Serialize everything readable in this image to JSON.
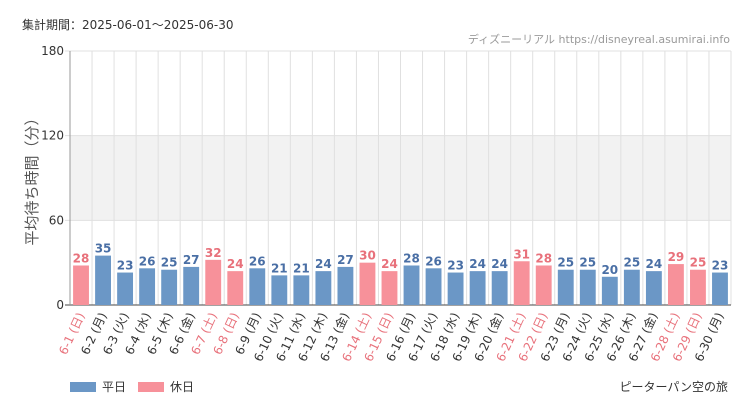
{
  "header": {
    "period": "集計期間：2025-06-01～2025-06-30"
  },
  "source": "ディズニーリアル https://disneyreal.asumirai.info",
  "attraction": "ピーターパン空の旅",
  "colors": {
    "weekday": "#6b97c6",
    "holiday": "#f7919a",
    "weekdayText": "#4a6fa5",
    "holidayText": "#e8717b",
    "band": "#f2f2f2",
    "grid": "#e0e0e0"
  },
  "chart_data": {
    "type": "bar",
    "ylabel": "平均待ち時間（分）",
    "ylim": [
      0,
      180
    ],
    "yticks": [
      0,
      60,
      120,
      180
    ],
    "grid": true,
    "legend": "bottom-left",
    "categories": [
      "6-1 (日)",
      "6-2 (月)",
      "6-3 (火)",
      "6-4 (水)",
      "6-5 (木)",
      "6-6 (金)",
      "6-7 (土)",
      "6-8 (日)",
      "6-9 (月)",
      "6-10 (火)",
      "6-11 (水)",
      "6-12 (木)",
      "6-13 (金)",
      "6-14 (土)",
      "6-15 (日)",
      "6-16 (月)",
      "6-17 (火)",
      "6-18 (水)",
      "6-19 (木)",
      "6-20 (金)",
      "6-21 (土)",
      "6-22 (日)",
      "6-23 (月)",
      "6-24 (火)",
      "6-25 (水)",
      "6-26 (木)",
      "6-27 (金)",
      "6-28 (土)",
      "6-29 (日)",
      "6-30 (月)"
    ],
    "values": [
      28,
      35,
      23,
      26,
      25,
      27,
      32,
      24,
      26,
      21,
      21,
      24,
      27,
      30,
      24,
      28,
      26,
      23,
      24,
      24,
      31,
      28,
      25,
      25,
      20,
      25,
      24,
      29,
      25,
      23
    ],
    "day_type": [
      "休日",
      "平日",
      "平日",
      "平日",
      "平日",
      "平日",
      "休日",
      "休日",
      "平日",
      "平日",
      "平日",
      "平日",
      "平日",
      "休日",
      "休日",
      "平日",
      "平日",
      "平日",
      "平日",
      "平日",
      "休日",
      "休日",
      "平日",
      "平日",
      "平日",
      "平日",
      "平日",
      "休日",
      "休日",
      "平日"
    ],
    "series": [
      {
        "name": "平日"
      },
      {
        "name": "休日"
      }
    ]
  }
}
